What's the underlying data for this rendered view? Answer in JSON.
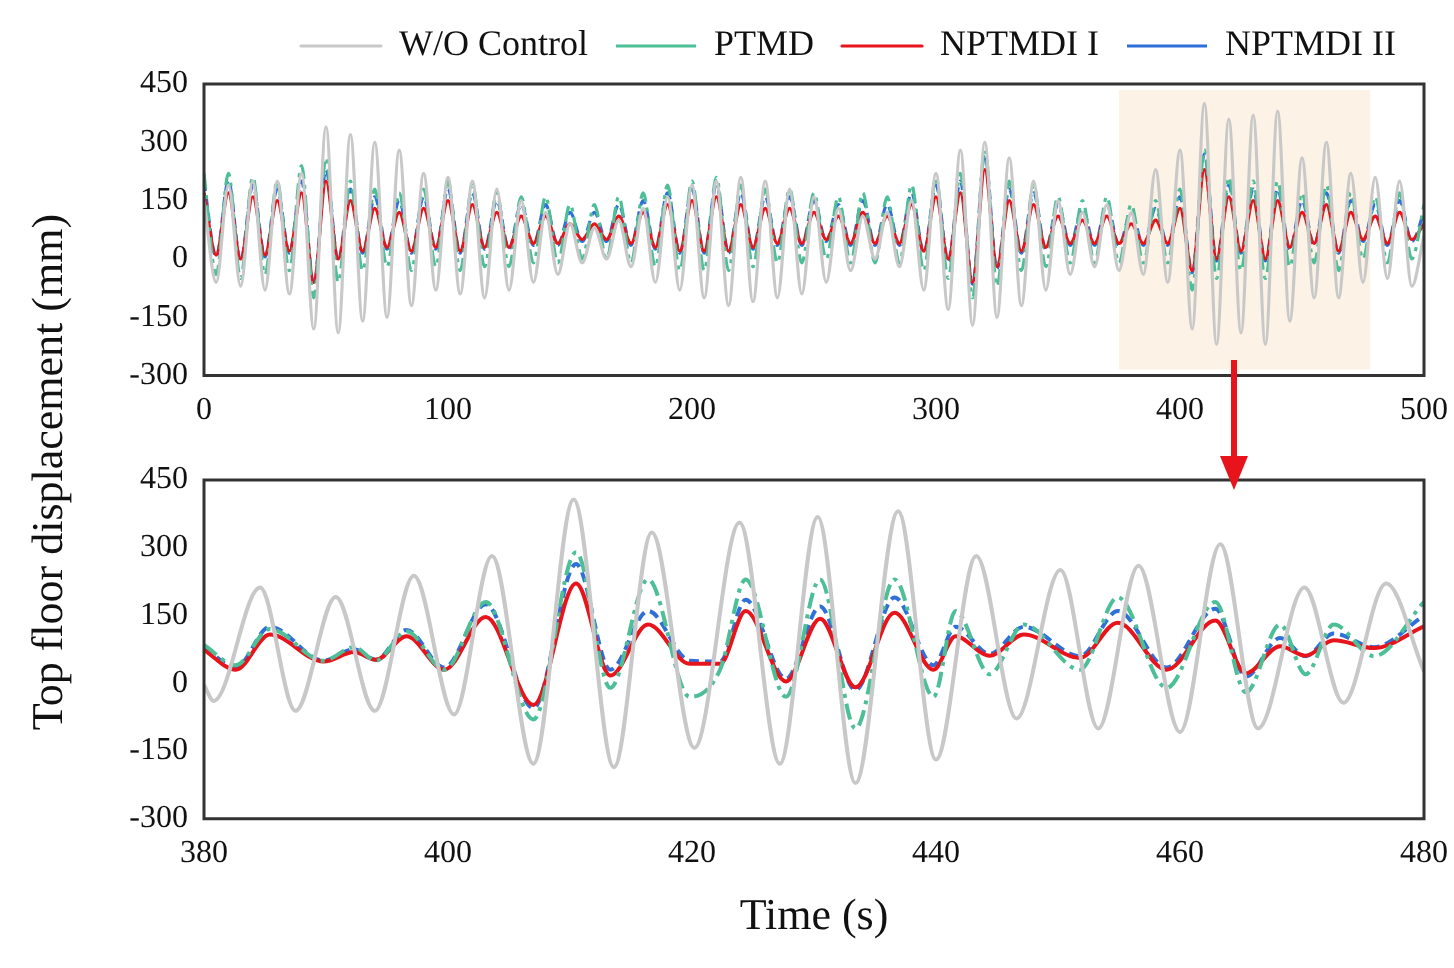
{
  "chart_data": [
    {
      "type": "line",
      "ylabel": "Top floor displacement (mm)",
      "legend": "top",
      "marker": "none",
      "xlim": [
        0,
        500
      ],
      "xticks": [
        0,
        100,
        200,
        300,
        400,
        500
      ],
      "ylim": [
        -300,
        450
      ],
      "yticks": [
        -300,
        -150,
        0,
        150,
        300,
        450
      ],
      "bands": [
        {
          "axis": "x",
          "from": 375,
          "to": 478,
          "color": "#fcf2e6"
        }
      ],
      "x": [
        0,
        5,
        10,
        15,
        20,
        25,
        30,
        35,
        40,
        45,
        50,
        55,
        60,
        65,
        70,
        75,
        80,
        85,
        90,
        95,
        100,
        105,
        110,
        115,
        120,
        125,
        130,
        135,
        140,
        145,
        150,
        155,
        160,
        165,
        170,
        175,
        180,
        185,
        190,
        195,
        200,
        205,
        210,
        215,
        220,
        225,
        230,
        235,
        240,
        245,
        250,
        255,
        260,
        265,
        270,
        275,
        280,
        285,
        290,
        295,
        300,
        305,
        310,
        315,
        320,
        325,
        330,
        335,
        340,
        345,
        350,
        355,
        360,
        365,
        370,
        375,
        380,
        385,
        390,
        395,
        400,
        405,
        410,
        415,
        420,
        425,
        430,
        435,
        440,
        445,
        450,
        455,
        460,
        465,
        470,
        475,
        480,
        485,
        490,
        495,
        500
      ],
      "series": [
        {
          "name": "W/O Control",
          "color": "#c8c8c8",
          "line_style": "solid",
          "values": [
            150,
            -60,
            190,
            -70,
            200,
            -80,
            200,
            -90,
            220,
            -180,
            340,
            -190,
            320,
            -160,
            300,
            -150,
            280,
            -120,
            220,
            -80,
            210,
            -90,
            200,
            -100,
            180,
            -80,
            150,
            -60,
            120,
            -40,
            90,
            -10,
            80,
            0,
            100,
            -20,
            130,
            -60,
            160,
            -80,
            190,
            -100,
            200,
            -120,
            210,
            -110,
            200,
            -100,
            180,
            -90,
            160,
            -60,
            130,
            -30,
            110,
            0,
            120,
            -20,
            150,
            -80,
            220,
            -130,
            280,
            -170,
            300,
            -150,
            260,
            -120,
            200,
            -80,
            150,
            -40,
            120,
            -20,
            140,
            -30,
            120,
            -40,
            230,
            -60,
            280,
            -180,
            400,
            -220,
            360,
            -190,
            370,
            -220,
            380,
            -160,
            260,
            -100,
            300,
            -100,
            220,
            -60,
            210,
            -50,
            200,
            -70,
            60
          ]
        },
        {
          "name": "PTMD",
          "color": "#4dbf96",
          "line_style": "dashdot",
          "values": [
            220,
            -40,
            220,
            -50,
            210,
            -40,
            200,
            -30,
            240,
            -100,
            260,
            -60,
            200,
            -30,
            180,
            -20,
            170,
            -30,
            180,
            -20,
            200,
            -30,
            190,
            -20,
            170,
            -20,
            160,
            -10,
            160,
            -10,
            140,
            0,
            140,
            0,
            160,
            -10,
            170,
            -20,
            190,
            -30,
            200,
            -30,
            210,
            -30,
            190,
            -20,
            180,
            -10,
            180,
            -10,
            170,
            0,
            160,
            -10,
            170,
            -10,
            160,
            -10,
            190,
            -30,
            210,
            -50,
            220,
            -100,
            280,
            -70,
            200,
            -30,
            190,
            -20,
            160,
            -10,
            150,
            -10,
            160,
            -10,
            140,
            -10,
            150,
            -10,
            180,
            -80,
            280,
            -50,
            210,
            -30,
            200,
            -50,
            200,
            -20,
            170,
            -10,
            190,
            -30,
            170,
            0,
            160,
            -10,
            170,
            0,
            140
          ]
        },
        {
          "name": "NPTMDI I",
          "color": "#e8141c",
          "line_style": "solid",
          "values": [
            170,
            10,
            170,
            0,
            160,
            10,
            150,
            20,
            170,
            -60,
            200,
            0,
            150,
            20,
            130,
            30,
            120,
            20,
            130,
            30,
            150,
            20,
            140,
            30,
            120,
            30,
            110,
            40,
            110,
            40,
            90,
            50,
            90,
            50,
            110,
            40,
            120,
            30,
            140,
            20,
            150,
            20,
            160,
            20,
            140,
            30,
            130,
            40,
            130,
            40,
            120,
            50,
            110,
            40,
            120,
            40,
            110,
            40,
            140,
            20,
            160,
            0,
            170,
            -60,
            230,
            -20,
            150,
            20,
            140,
            30,
            110,
            40,
            100,
            40,
            110,
            40,
            90,
            40,
            100,
            40,
            130,
            -30,
            230,
            0,
            160,
            20,
            150,
            0,
            150,
            30,
            120,
            40,
            140,
            20,
            120,
            50,
            110,
            40,
            120,
            50,
            90
          ]
        },
        {
          "name": "NPTMDI II",
          "color": "#2f6fd8",
          "line_style": "dashed",
          "values": [
            200,
            5,
            200,
            -5,
            190,
            5,
            180,
            15,
            200,
            -65,
            230,
            -5,
            180,
            15,
            160,
            25,
            150,
            15,
            160,
            25,
            180,
            15,
            170,
            25,
            150,
            25,
            140,
            35,
            140,
            35,
            120,
            45,
            120,
            45,
            140,
            35,
            150,
            25,
            170,
            15,
            180,
            15,
            190,
            15,
            170,
            25,
            160,
            35,
            160,
            35,
            150,
            45,
            140,
            35,
            150,
            35,
            140,
            35,
            170,
            15,
            190,
            -5,
            200,
            -65,
            270,
            -25,
            180,
            15,
            170,
            25,
            140,
            35,
            130,
            35,
            140,
            35,
            120,
            35,
            130,
            35,
            160,
            -35,
            270,
            -5,
            190,
            15,
            180,
            -5,
            180,
            25,
            150,
            35,
            170,
            15,
            150,
            45,
            140,
            35,
            150,
            45,
            120
          ]
        }
      ]
    },
    {
      "type": "line",
      "xlabel": "Time (s)",
      "marker": "none",
      "xlim": [
        380,
        480
      ],
      "xticks": [
        380,
        400,
        420,
        440,
        460,
        480
      ],
      "ylim": [
        -300,
        450
      ],
      "yticks": [
        -300,
        -150,
        0,
        150,
        300,
        450
      ],
      "x": [
        380,
        382.6,
        385.4,
        389.8,
        392.3,
        394.1,
        396.6,
        399.7,
        403.1,
        407,
        410.5,
        413.3,
        416.4,
        419.8,
        422.3,
        424.4,
        427.7,
        430.5,
        433.4,
        436.6,
        439.8,
        441.6,
        444.4,
        447.2,
        451.8,
        454.9,
        458.9,
        462.9,
        465.4,
        468.2,
        470.3,
        472.6,
        475.9,
        480
      ],
      "series": [
        {
          "color": "#c8c8c8",
          "line_style": "solid",
          "x": [
            380,
            380.8,
            384.6,
            387.5,
            390.8,
            394,
            397.2,
            400.5,
            403.6,
            407,
            410.3,
            413.6,
            416.7,
            420.2,
            423.9,
            427.2,
            430.3,
            433.4,
            436.9,
            440,
            443.3,
            446.6,
            450.2,
            453.3,
            456.6,
            460,
            463.3,
            466.4,
            470.2,
            473.4,
            476.9,
            480
          ],
          "values": [
            -4,
            -39,
            212,
            -61,
            191,
            -61,
            238,
            -69,
            282,
            -178,
            407,
            -186,
            334,
            -143,
            356,
            -178,
            368,
            -221,
            381,
            -169,
            282,
            -78,
            251,
            -100,
            260,
            -108,
            308,
            -100,
            212,
            -43,
            221,
            26
          ]
        },
        {
          "color": "#4dbf96",
          "line_style": "dashdot",
          "values": [
            85,
            40,
            120,
            50,
            80,
            50,
            115,
            30,
            180,
            -80,
            290,
            -10,
            230,
            -30,
            30,
            230,
            -30,
            230,
            -100,
            230,
            -30,
            160,
            20,
            130,
            30,
            190,
            -10,
            180,
            -20,
            130,
            20,
            130,
            60,
            180
          ]
        },
        {
          "color": "#e8141c",
          "line_style": "solid",
          "values": [
            74,
            30,
            108,
            48,
            69,
            52,
            104,
            30,
            147,
            -48,
            221,
            17,
            130,
            43,
            43,
            160,
            4,
            143,
            -9,
            156,
            30,
            104,
            61,
            108,
            56,
            134,
            30,
            139,
            22,
            82,
            61,
            95,
            78,
            126
          ]
        },
        {
          "color": "#2f6fd8",
          "line_style": "dashed",
          "values": [
            80,
            35,
            125,
            50,
            75,
            52,
            118,
            35,
            175,
            -55,
            264,
            30,
            160,
            50,
            48,
            185,
            10,
            170,
            -15,
            190,
            40,
            125,
            65,
            125,
            60,
            160,
            35,
            165,
            15,
            100,
            60,
            110,
            80,
            150
          ]
        }
      ]
    }
  ]
}
